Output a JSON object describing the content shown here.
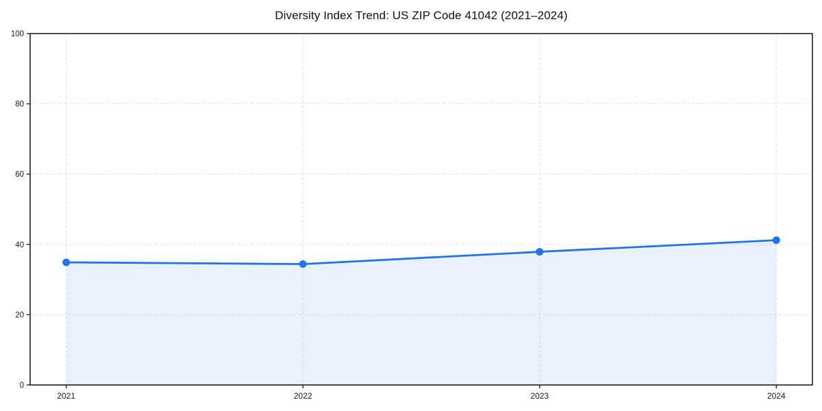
{
  "chart_data": {
    "type": "area",
    "title": "Diversity Index Trend: US ZIP Code 41042 (2021–2024)",
    "categories": [
      "2021",
      "2022",
      "2023",
      "2024"
    ],
    "values": [
      34.9,
      34.4,
      37.9,
      41.2
    ],
    "xlabel": "",
    "ylabel": "",
    "ylim": [
      0,
      100
    ],
    "y_ticks": [
      0,
      20,
      40,
      60,
      80,
      100
    ],
    "grid": true,
    "grid_style": "dashed",
    "legend": false,
    "marker": "circle",
    "colors": {
      "line": "#2273e6",
      "marker": "#2273e6",
      "fill": "#2273e6",
      "fill_opacity": "0.10",
      "grid": "#e2e2e2",
      "axis": "#000000",
      "tick_text": "#1a1a1a",
      "background": "#ffffff"
    }
  }
}
